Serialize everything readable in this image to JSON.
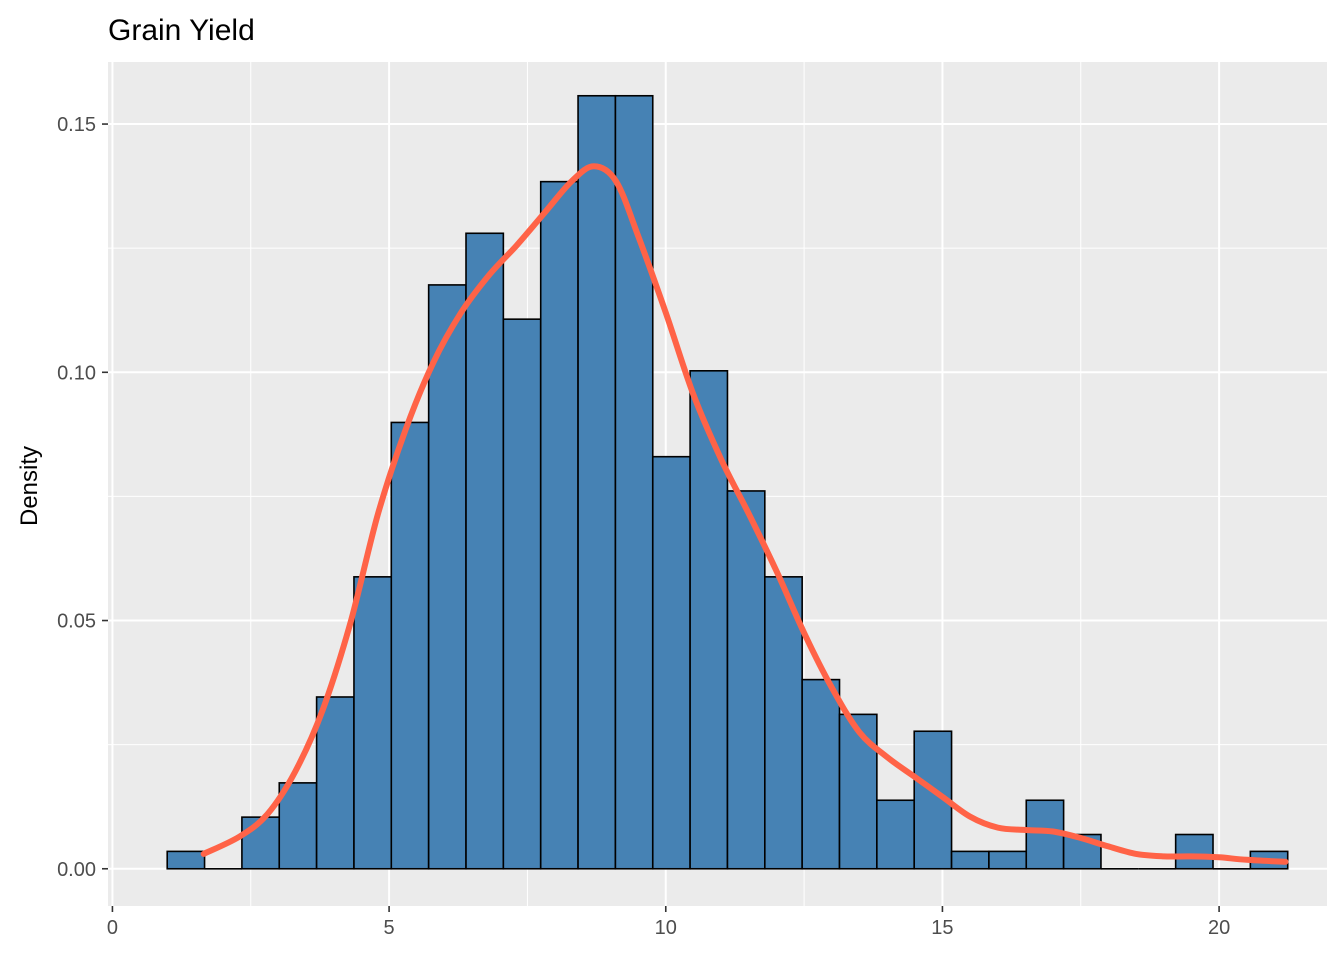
{
  "chart_data": {
    "type": "bar",
    "title": "Grain Yield",
    "xlabel": "",
    "ylabel": "Density",
    "xlim": [
      -0.08,
      21.95
    ],
    "ylim": [
      -0.0075,
      0.1625
    ],
    "x_ticks": [
      0,
      5,
      10,
      15,
      20
    ],
    "x_tick_labels": [
      "0",
      "5",
      "10",
      "15",
      "20"
    ],
    "y_ticks": [
      0.0,
      0.05,
      0.1,
      0.15
    ],
    "y_tick_labels": [
      "0.00",
      "0.05",
      "0.10",
      "0.15"
    ],
    "grid": true,
    "histogram": {
      "bin_width": 0.675,
      "bin_start": 0.99,
      "values": [
        0.0035,
        0.0,
        0.0104,
        0.0173,
        0.0346,
        0.0588,
        0.0899,
        0.1176,
        0.128,
        0.1107,
        0.1384,
        0.1557,
        0.1557,
        0.083,
        0.1003,
        0.0761,
        0.0588,
        0.0381,
        0.0311,
        0.0138,
        0.0277,
        0.0035,
        0.0035,
        0.0138,
        0.0069,
        0.0,
        0.0,
        0.0069,
        0.0,
        0.0035
      ]
    },
    "density_curve": {
      "x": [
        1.65,
        2.3,
        2.8,
        3.3,
        3.8,
        4.3,
        4.8,
        5.3,
        5.8,
        6.3,
        6.8,
        7.3,
        7.8,
        8.3,
        8.7,
        9.1,
        9.5,
        10.0,
        10.5,
        11.0,
        11.5,
        12.0,
        12.5,
        13.0,
        13.5,
        14.0,
        14.5,
        15.0,
        15.5,
        16.0,
        16.5,
        17.0,
        17.5,
        18.0,
        18.5,
        19.0,
        19.5,
        20.0,
        20.5,
        21.2
      ],
      "y": [
        0.003,
        0.0065,
        0.011,
        0.0195,
        0.032,
        0.0495,
        0.0715,
        0.0885,
        0.102,
        0.112,
        0.1195,
        0.1255,
        0.132,
        0.1385,
        0.1415,
        0.1385,
        0.1275,
        0.112,
        0.0955,
        0.0825,
        0.0715,
        0.06,
        0.0475,
        0.0365,
        0.0275,
        0.0225,
        0.0185,
        0.0145,
        0.0105,
        0.0083,
        0.0078,
        0.0075,
        0.0062,
        0.0045,
        0.003,
        0.0025,
        0.0025,
        0.0023,
        0.0018,
        0.0014
      ]
    },
    "colors": {
      "bar_fill": "#4682b4",
      "bar_stroke": "#000000",
      "curve": "#ff6347",
      "panel_bg": "#ebebeb",
      "grid": "#ffffff",
      "tick_text": "#4d4d4d",
      "tick_mark": "#333333"
    }
  }
}
